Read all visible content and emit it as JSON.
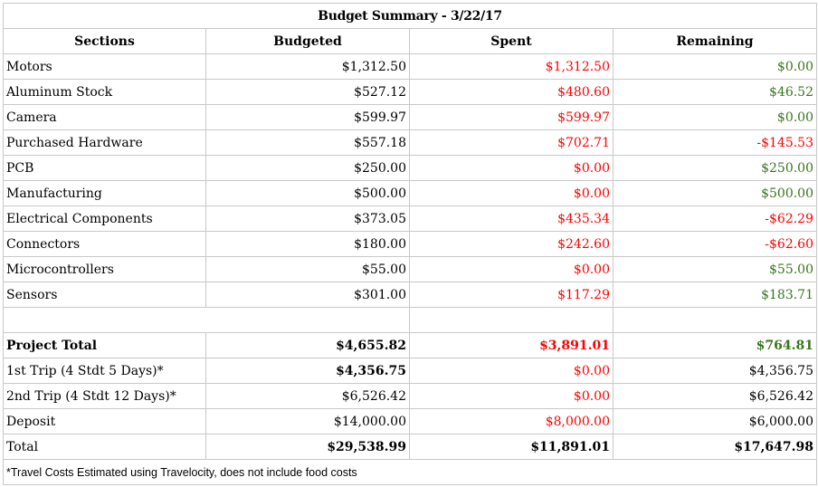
{
  "title": "Budget Summary - 3/22/17",
  "headers": [
    "Sections",
    "Budgeted",
    "Spent",
    "Remaining"
  ],
  "sections": [
    {
      "name": "Motors",
      "budgeted": "$1,312.50",
      "spent": "$1,312.50",
      "remaining": "$0.00"
    },
    {
      "name": "Aluminum Stock",
      "budgeted": "$527.12",
      "spent": "$480.60",
      "remaining": "$46.52"
    },
    {
      "name": "Camera",
      "budgeted": "$599.97",
      "spent": "$599.97",
      "remaining": "$0.00"
    },
    {
      "name": "Purchased Hardware",
      "budgeted": "$557.18",
      "spent": "$702.71",
      "remaining": "-$145.53"
    },
    {
      "name": "PCB",
      "budgeted": "$250.00",
      "spent": "$0.00",
      "remaining": "$250.00"
    },
    {
      "name": "Manufacturing",
      "budgeted": "$500.00",
      "spent": "$0.00",
      "remaining": "$500.00"
    },
    {
      "name": "Electrical Components",
      "budgeted": "$373.05",
      "spent": "$435.34",
      "remaining": "-$62.29"
    },
    {
      "name": "Connectors",
      "budgeted": "$180.00",
      "spent": "$242.60",
      "remaining": "-$62.60"
    },
    {
      "name": "Microcontrollers",
      "budgeted": "$55.00",
      "spent": "$0.00",
      "remaining": "$55.00"
    },
    {
      "name": "Sensors",
      "budgeted": "$301.00",
      "spent": "$117.29",
      "remaining": "$183.71"
    }
  ],
  "project_total": {
    "name": "Project Total",
    "budgeted": "$4,655.82",
    "spent": "$3,891.01",
    "remaining": "$764.81"
  },
  "trip1": {
    "name": "1st Trip (4 Stdt 5 Days)*",
    "budgeted": "$4,356.75",
    "spent": "$0.00",
    "remaining": "$4,356.75"
  },
  "trip2": {
    "name": "2nd Trip (4 Stdt 12 Days)*",
    "budgeted": "$6,526.42",
    "spent": "$0.00",
    "remaining": "$6,526.42"
  },
  "deposit": {
    "name": "Deposit",
    "budgeted": "$14,000.00",
    "spent": "$8,000.00",
    "remaining": "$6,000.00"
  },
  "total": {
    "name": "Total",
    "budgeted": "$29,538.99",
    "spent": "$11,891.01",
    "remaining": "$17,647.98"
  },
  "footnote": "*Travel Costs Estimated using Travelocity, does not include food costs",
  "colors": {
    "spent": "#ff0000",
    "remaining_positive": "#38761d",
    "grid": "#c8c8c8"
  }
}
